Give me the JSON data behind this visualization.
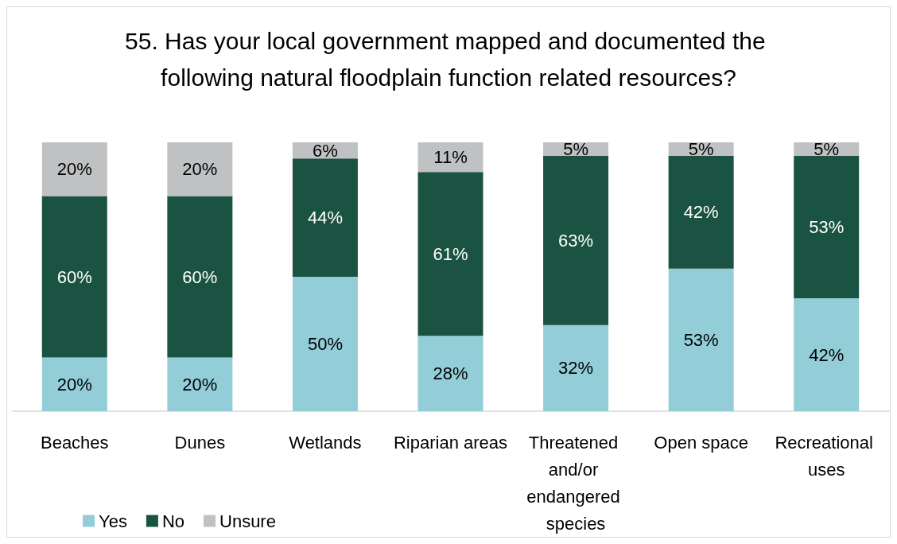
{
  "chart_data": {
    "type": "bar",
    "title": "55. Has your local government mapped and documented the following natural floodplain function related resources?",
    "categories": [
      "Beaches",
      "Dunes",
      "Wetlands",
      "Riparian areas",
      "Threatened and/or endangered species",
      "Open space",
      "Recreational uses"
    ],
    "series": [
      {
        "name": "Yes",
        "color": "#92cdd8",
        "values": [
          20,
          20,
          50,
          28,
          32,
          53,
          42
        ],
        "value_labels": [
          "20%",
          "20%",
          "50%",
          "28%",
          "32%",
          "53%",
          "42%"
        ]
      },
      {
        "name": "No",
        "color": "#1a5341",
        "values": [
          60,
          60,
          44,
          61,
          63,
          42,
          53
        ],
        "value_labels": [
          "60%",
          "60%",
          "44%",
          "61%",
          "63%",
          "42%",
          "53%"
        ]
      },
      {
        "name": "Unsure",
        "color": "#bfc1c3",
        "values": [
          20,
          20,
          6,
          11,
          5,
          5,
          5
        ],
        "value_labels": [
          "20%",
          "20%",
          "6%",
          "11%",
          "5%",
          "5%",
          "5%"
        ]
      }
    ],
    "stacked": true,
    "tick_labels": "x",
    "legend": "bottom left"
  }
}
